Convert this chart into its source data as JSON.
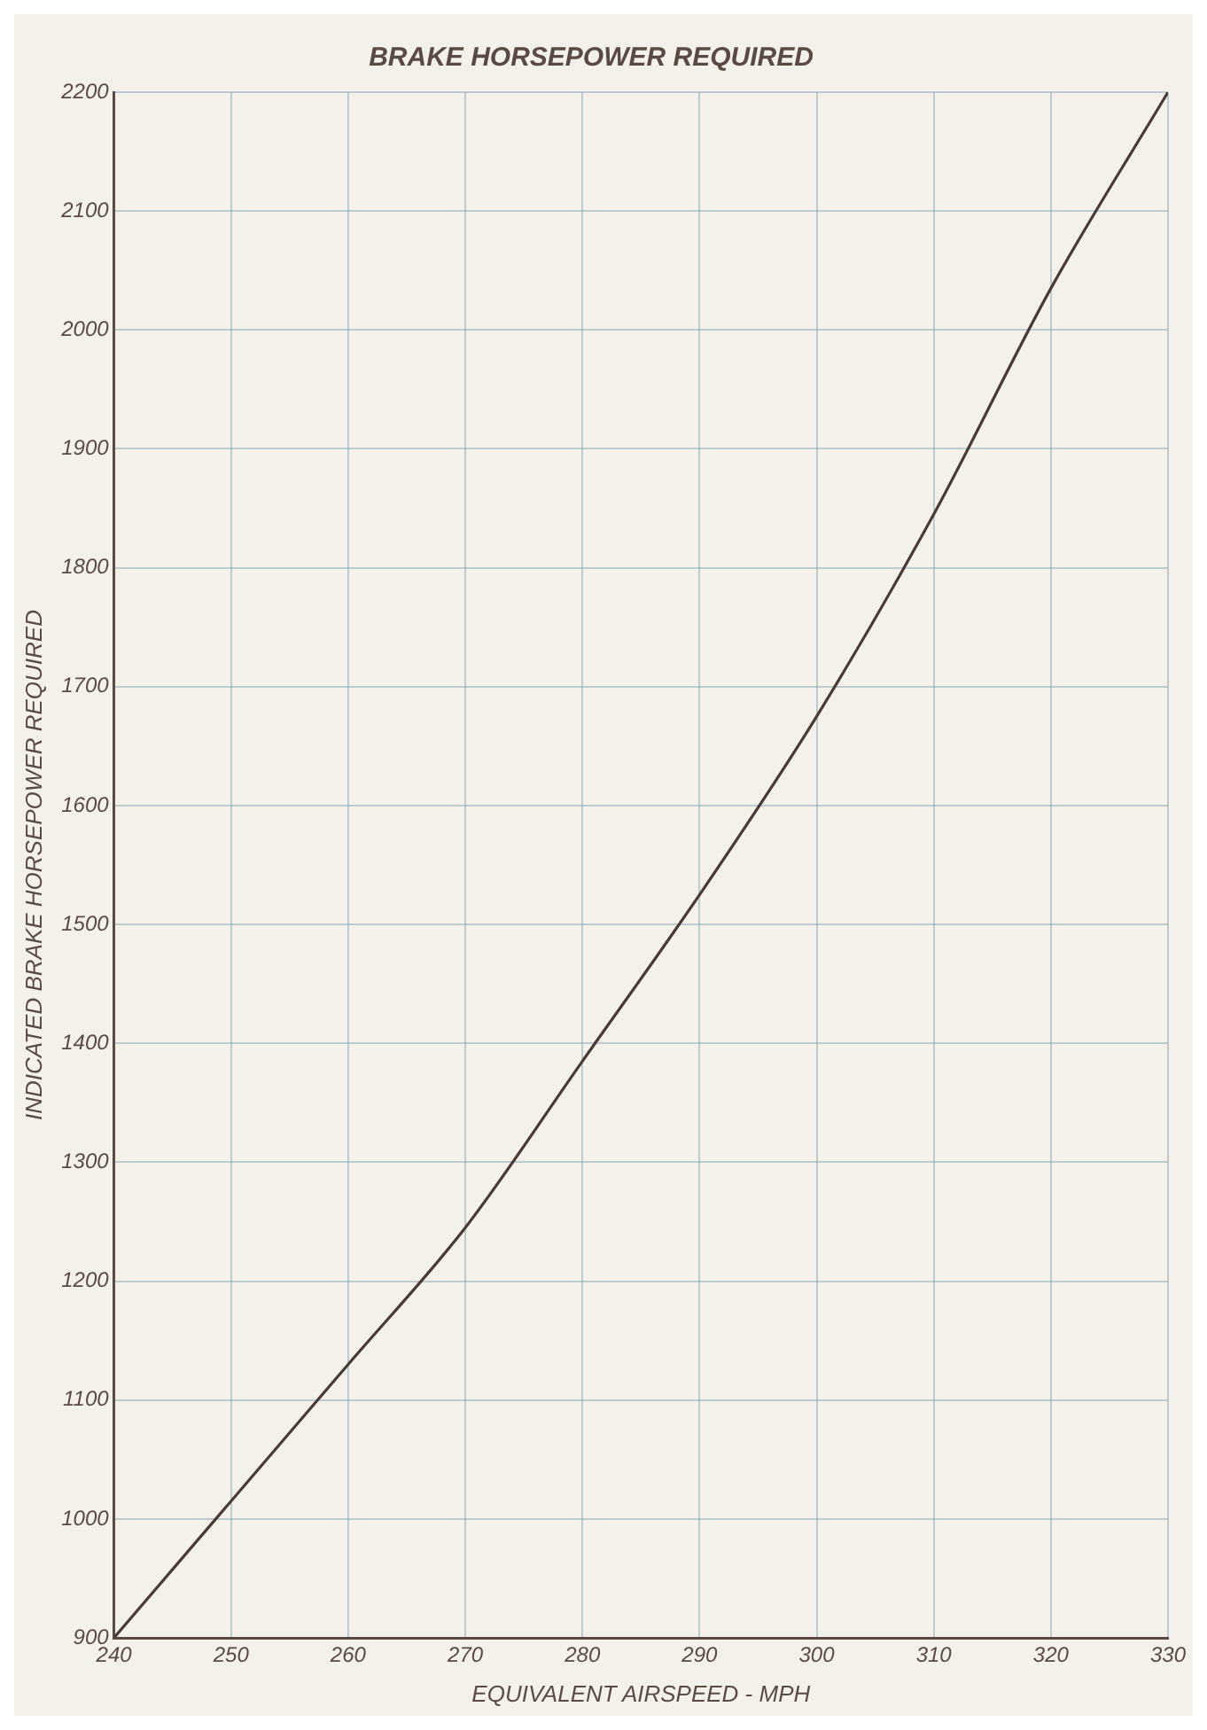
{
  "chart_data": {
    "type": "line",
    "title": "BRAKE HORSEPOWER REQUIRED",
    "xlabel": "EQUIVALENT AIRSPEED - MPH",
    "ylabel": "INDICATED BRAKE HORSEPOWER REQUIRED",
    "x": [
      240,
      250,
      260,
      270,
      280,
      290,
      300,
      310,
      320,
      330
    ],
    "series": [
      {
        "color": "#4a3a36",
        "values": [
          900,
          1015,
          1130,
          1245,
          1385,
          1525,
          1675,
          1845,
          2035,
          2200
        ]
      }
    ],
    "xlim": [
      240,
      330
    ],
    "xticks": [
      240,
      250,
      260,
      270,
      280,
      290,
      300,
      310,
      320,
      330
    ],
    "ylim": [
      900,
      2200
    ],
    "yticks": [
      900,
      1000,
      1100,
      1200,
      1300,
      1400,
      1500,
      1600,
      1700,
      1800,
      1900,
      2000,
      2100,
      2200
    ],
    "grid": true,
    "legend": false,
    "marker": "none",
    "line_style": "solid"
  }
}
